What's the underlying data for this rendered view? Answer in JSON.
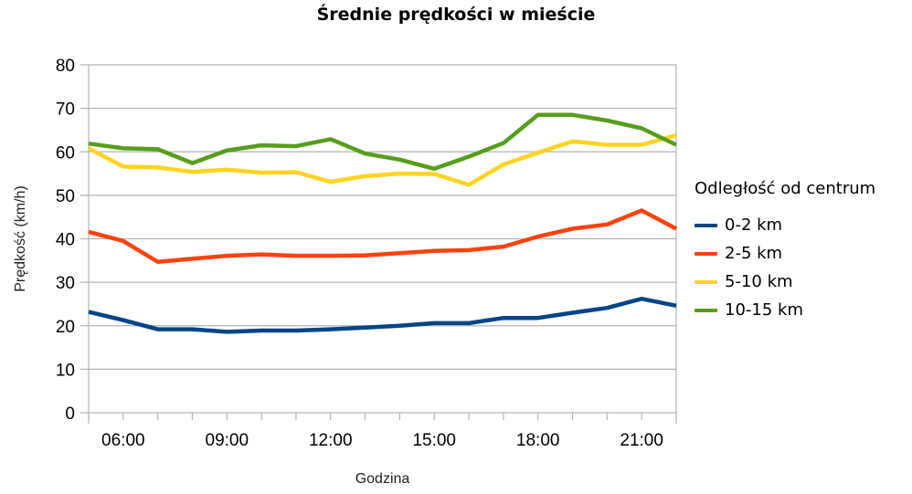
{
  "chart_data": {
    "type": "line",
    "title": "Średnie prędkości w mieście",
    "xlabel": "Godzina",
    "ylabel": "Prędkość (km/h)",
    "ylim": [
      0,
      80
    ],
    "yticks": [
      0,
      10,
      20,
      30,
      40,
      50,
      60,
      70,
      80
    ],
    "grid": true,
    "legend_position": "right",
    "legend_title": "Odległość od centrum",
    "x": [
      "05:00",
      "06:00",
      "07:00",
      "08:00",
      "09:00",
      "10:00",
      "11:00",
      "12:00",
      "13:00",
      "14:00",
      "15:00",
      "16:00",
      "17:00",
      "18:00",
      "19:00",
      "20:00",
      "21:00",
      "22:00"
    ],
    "xtick_labels": [
      "06:00",
      "09:00",
      "12:00",
      "15:00",
      "18:00",
      "21:00"
    ],
    "series": [
      {
        "name": "0-2 km",
        "color": "#004586",
        "values": [
          23.2,
          21.3,
          19.2,
          19.2,
          18.6,
          18.9,
          18.9,
          19.2,
          19.6,
          20.0,
          20.6,
          20.6,
          21.8,
          21.8,
          23.0,
          24.1,
          26.2,
          24.6
        ]
      },
      {
        "name": "2-5 km",
        "color": "#ff420e",
        "values": [
          41.6,
          39.5,
          34.7,
          35.4,
          36.1,
          36.4,
          36.1,
          36.1,
          36.2,
          36.7,
          37.2,
          37.4,
          38.2,
          40.5,
          42.3,
          43.3,
          46.5,
          42.3
        ]
      },
      {
        "name": "5-10 km",
        "color": "#ffd320",
        "values": [
          60.8,
          56.6,
          56.4,
          55.4,
          55.9,
          55.2,
          55.3,
          53.1,
          54.4,
          55.0,
          54.9,
          52.4,
          57.1,
          59.8,
          62.4,
          61.6,
          61.6,
          63.8
        ]
      },
      {
        "name": "10-15 km",
        "color": "#579d1c",
        "values": [
          61.9,
          60.8,
          60.6,
          57.4,
          60.3,
          61.5,
          61.3,
          62.9,
          59.6,
          58.2,
          56.1,
          58.9,
          62.0,
          68.5,
          68.5,
          67.2,
          65.4,
          61.6
        ]
      }
    ]
  }
}
